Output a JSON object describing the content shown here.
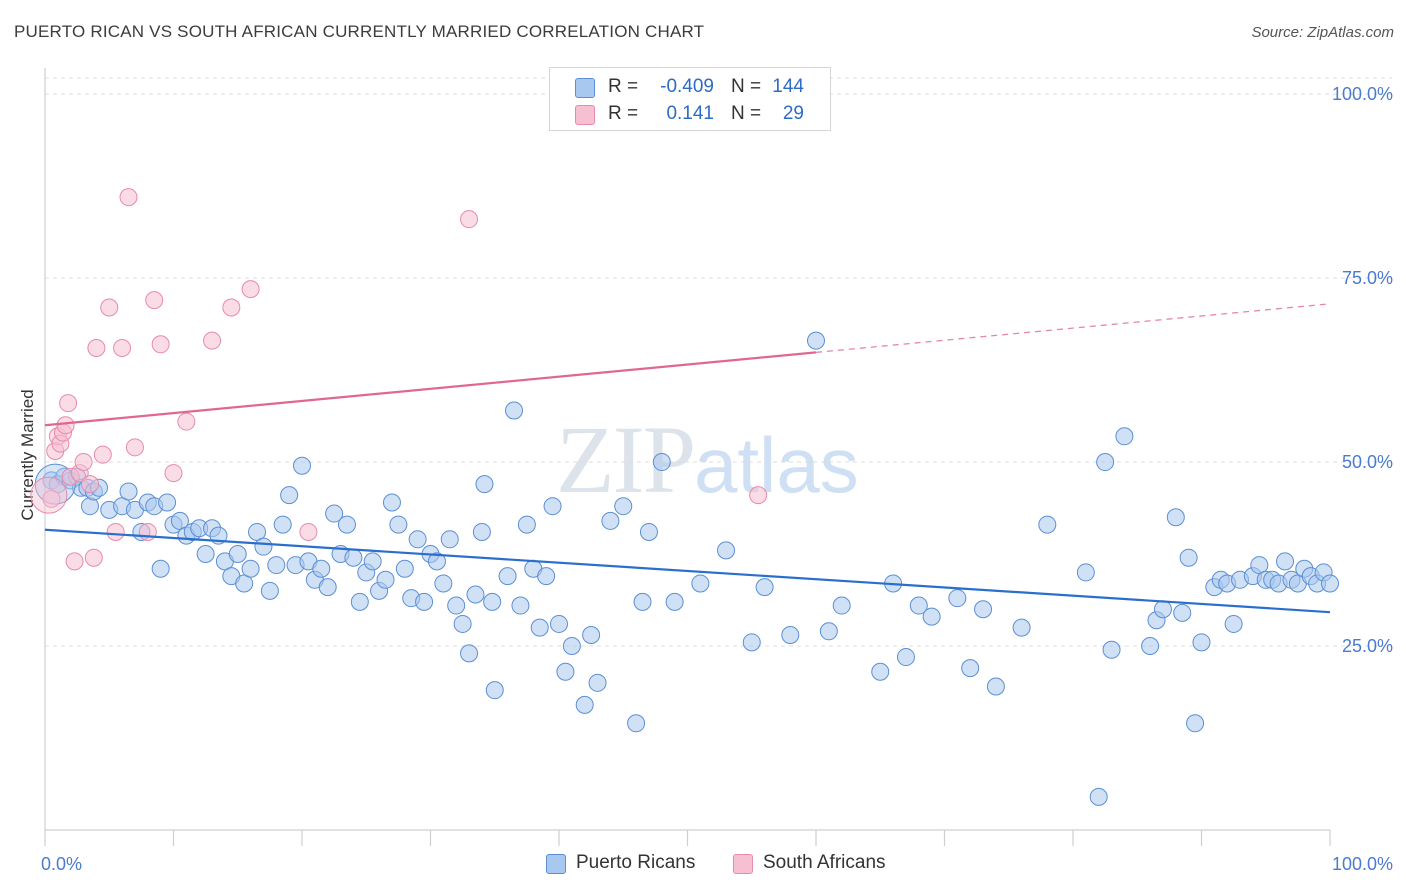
{
  "header": {
    "title": "PUERTO RICAN VS SOUTH AFRICAN CURRENTLY MARRIED CORRELATION CHART",
    "source": "Source: ZipAtlas.com"
  },
  "watermark": {
    "zip": "ZIP",
    "atlas": "atlas"
  },
  "colors": {
    "blue_fill": "#a9c8ef",
    "blue_stroke": "#5b8fd4",
    "blue_line": "#2b6fcc",
    "pink_fill": "#f6c0d2",
    "pink_stroke": "#e88aab",
    "pink_line": "#e06890",
    "tick_text": "#4b7bd0",
    "grid": "#dcdcdc"
  },
  "legend": {
    "rows": [
      {
        "r_label": "R =",
        "r_value": "-0.409",
        "n_label": "N =",
        "n_value": "144"
      },
      {
        "r_label": "R =",
        "r_value": "0.141",
        "n_label": "N =",
        "n_value": "29"
      }
    ]
  },
  "bottom_legend": {
    "items": [
      "Puerto Ricans",
      "South Africans"
    ]
  },
  "chart_data": {
    "type": "scatter",
    "title": "PUERTO RICAN VS SOUTH AFRICAN CURRENTLY MARRIED CORRELATION CHART",
    "xlabel": "",
    "ylabel": "Currently Married",
    "xlim": [
      0,
      100
    ],
    "ylim": [
      0,
      103
    ],
    "x_tick_labels": [
      "0.0%",
      "100.0%"
    ],
    "y_ticks": [
      25,
      50,
      75,
      100
    ],
    "y_tick_labels": [
      "25.0%",
      "50.0%",
      "75.0%",
      "100.0%"
    ],
    "grid": true,
    "legend_position": "top-center",
    "series": [
      {
        "name": "Puerto Ricans",
        "color": "#a9c8ef",
        "trend": {
          "x": [
            0,
            100
          ],
          "y": [
            40.8,
            29.6
          ],
          "dashed_from": null
        },
        "points": [
          [
            0.5,
            47.5
          ],
          [
            1,
            47.0
          ],
          [
            1.5,
            48.0
          ],
          [
            2,
            47.5
          ],
          [
            2.5,
            48.0
          ],
          [
            2.8,
            46.5
          ],
          [
            3.3,
            46.5
          ],
          [
            3.5,
            44.0
          ],
          [
            3.8,
            46.0
          ],
          [
            4.2,
            46.5
          ],
          [
            5,
            43.5
          ],
          [
            6,
            44.0
          ],
          [
            6.5,
            46.0
          ],
          [
            7,
            43.5
          ],
          [
            7.5,
            40.5
          ],
          [
            8,
            44.5
          ],
          [
            8.5,
            44.0
          ],
          [
            9,
            35.5
          ],
          [
            9.5,
            44.5
          ],
          [
            10,
            41.5
          ],
          [
            10.5,
            42.0
          ],
          [
            11,
            40.0
          ],
          [
            11.5,
            40.5
          ],
          [
            12,
            41.0
          ],
          [
            12.5,
            37.5
          ],
          [
            13,
            41.0
          ],
          [
            13.5,
            40.0
          ],
          [
            14,
            36.5
          ],
          [
            14.5,
            34.5
          ],
          [
            15,
            37.5
          ],
          [
            15.5,
            33.5
          ],
          [
            16,
            35.5
          ],
          [
            16.5,
            40.5
          ],
          [
            17,
            38.5
          ],
          [
            17.5,
            32.5
          ],
          [
            18,
            36.0
          ],
          [
            18.5,
            41.5
          ],
          [
            19,
            45.5
          ],
          [
            19.5,
            36.0
          ],
          [
            20,
            49.5
          ],
          [
            20.5,
            36.5
          ],
          [
            21,
            34.0
          ],
          [
            21.5,
            35.5
          ],
          [
            22,
            33.0
          ],
          [
            22.5,
            43.0
          ],
          [
            23,
            37.5
          ],
          [
            23.5,
            41.5
          ],
          [
            24,
            37.0
          ],
          [
            24.5,
            31.0
          ],
          [
            25,
            35.0
          ],
          [
            25.5,
            36.5
          ],
          [
            26,
            32.5
          ],
          [
            26.5,
            34.0
          ],
          [
            27,
            44.5
          ],
          [
            27.5,
            41.5
          ],
          [
            28,
            35.5
          ],
          [
            28.5,
            31.5
          ],
          [
            29,
            39.5
          ],
          [
            29.5,
            31.0
          ],
          [
            30,
            37.5
          ],
          [
            30.5,
            36.5
          ],
          [
            31,
            33.5
          ],
          [
            31.5,
            39.5
          ],
          [
            32,
            30.5
          ],
          [
            32.5,
            28.0
          ],
          [
            33,
            24.0
          ],
          [
            33.5,
            32.0
          ],
          [
            34,
            40.5
          ],
          [
            34.2,
            47.0
          ],
          [
            34.8,
            31.0
          ],
          [
            35,
            19.0
          ],
          [
            36,
            34.5
          ],
          [
            36.5,
            57.0
          ],
          [
            37,
            30.5
          ],
          [
            37.5,
            41.5
          ],
          [
            38,
            35.5
          ],
          [
            38.5,
            27.5
          ],
          [
            39,
            34.5
          ],
          [
            39.5,
            44.0
          ],
          [
            40,
            28.0
          ],
          [
            40.5,
            21.5
          ],
          [
            41,
            25.0
          ],
          [
            42,
            17.0
          ],
          [
            42.5,
            26.5
          ],
          [
            43,
            20.0
          ],
          [
            44,
            42.0
          ],
          [
            45,
            44.0
          ],
          [
            46,
            14.5
          ],
          [
            46.5,
            31.0
          ],
          [
            47,
            40.5
          ],
          [
            48,
            50.0
          ],
          [
            49,
            31.0
          ],
          [
            51,
            33.5
          ],
          [
            53,
            38.0
          ],
          [
            55,
            25.5
          ],
          [
            56,
            33.0
          ],
          [
            58,
            26.5
          ],
          [
            60,
            66.5
          ],
          [
            61,
            27.0
          ],
          [
            62,
            30.5
          ],
          [
            65,
            21.5
          ],
          [
            66,
            33.5
          ],
          [
            67,
            23.5
          ],
          [
            68,
            30.5
          ],
          [
            69,
            29.0
          ],
          [
            71,
            31.5
          ],
          [
            72,
            22.0
          ],
          [
            73,
            30.0
          ],
          [
            74,
            19.5
          ],
          [
            76,
            27.5
          ],
          [
            78,
            41.5
          ],
          [
            81,
            35.0
          ],
          [
            82,
            4.5
          ],
          [
            82.5,
            50.0
          ],
          [
            83,
            24.5
          ],
          [
            84,
            53.5
          ],
          [
            86,
            25.0
          ],
          [
            86.5,
            28.5
          ],
          [
            87,
            30.0
          ],
          [
            88,
            42.5
          ],
          [
            88.5,
            29.5
          ],
          [
            89,
            37.0
          ],
          [
            89.5,
            14.5
          ],
          [
            90,
            25.5
          ],
          [
            91,
            33.0
          ],
          [
            91.5,
            34.0
          ],
          [
            92,
            33.5
          ],
          [
            92.5,
            28.0
          ],
          [
            93,
            34.0
          ],
          [
            94,
            34.5
          ],
          [
            94.5,
            36.0
          ],
          [
            95,
            34.0
          ],
          [
            95.5,
            34.0
          ],
          [
            96,
            33.5
          ],
          [
            96.5,
            36.5
          ],
          [
            97,
            34.0
          ],
          [
            97.5,
            33.5
          ],
          [
            98,
            35.5
          ],
          [
            98.5,
            34.5
          ],
          [
            99,
            33.5
          ],
          [
            99.5,
            35.0
          ],
          [
            100,
            33.5
          ]
        ]
      },
      {
        "name": "South Africans",
        "color": "#f6c0d2",
        "trend": {
          "x": [
            0,
            100
          ],
          "y": [
            55.0,
            71.5
          ],
          "dashed_from": 60
        },
        "points": [
          [
            0.5,
            45.0
          ],
          [
            0.8,
            51.5
          ],
          [
            1,
            53.5
          ],
          [
            1.2,
            52.5
          ],
          [
            1.4,
            54.0
          ],
          [
            1.6,
            55.0
          ],
          [
            1.8,
            58.0
          ],
          [
            2,
            48.0
          ],
          [
            2.3,
            36.5
          ],
          [
            2.7,
            48.5
          ],
          [
            3,
            50.0
          ],
          [
            3.5,
            47.0
          ],
          [
            3.8,
            37.0
          ],
          [
            4,
            65.5
          ],
          [
            4.5,
            51.0
          ],
          [
            5,
            71.0
          ],
          [
            5.5,
            40.5
          ],
          [
            6,
            65.5
          ],
          [
            6.5,
            86.0
          ],
          [
            7,
            52.0
          ],
          [
            8,
            40.5
          ],
          [
            8.5,
            72.0
          ],
          [
            9,
            66.0
          ],
          [
            10,
            48.5
          ],
          [
            11,
            55.5
          ],
          [
            13,
            66.5
          ],
          [
            14.5,
            71.0
          ],
          [
            16,
            73.5
          ],
          [
            20.5,
            40.5
          ],
          [
            33,
            83.0
          ],
          [
            55.5,
            45.5
          ]
        ]
      }
    ]
  }
}
